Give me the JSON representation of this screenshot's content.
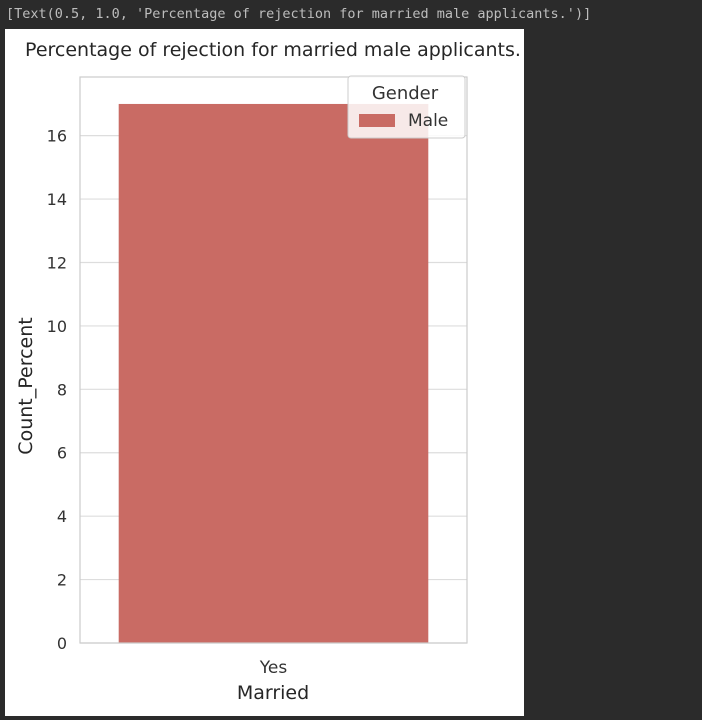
{
  "console": {
    "output_line": "[Text(0.5, 1.0, 'Percentage of rejection for married male applicants.')]"
  },
  "chart_data": {
    "type": "bar",
    "title": "Percentage of rejection for married male applicants.",
    "categories": [
      "Yes"
    ],
    "series": [
      {
        "name": "Male",
        "values": [
          17.0
        ],
        "color": "#c96b64"
      }
    ],
    "xlabel": "Married",
    "ylabel": "Count_Percent",
    "ylim": [
      0,
      17.85
    ],
    "yticks": [
      0,
      2,
      4,
      6,
      8,
      10,
      12,
      14,
      16
    ],
    "grid": true,
    "legend": {
      "title": "Gender",
      "placement": "top-right"
    }
  }
}
